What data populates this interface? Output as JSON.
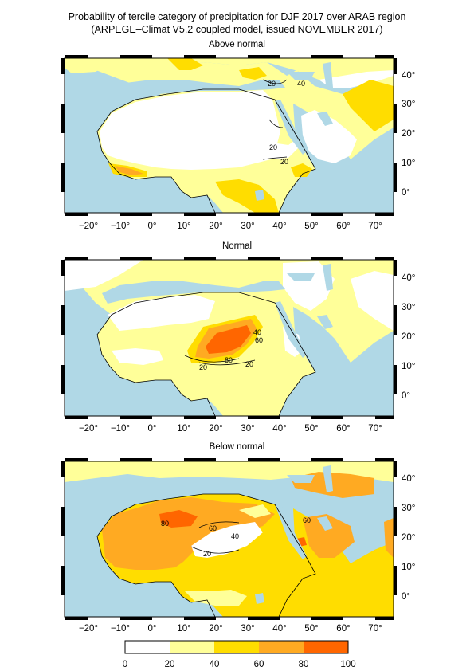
{
  "title": "Probability of tercile category of precipitation for DJF 2017 over ARAB region",
  "subtitle": "(ARPEGE–Climat V5.2 coupled model, issued NOVEMBER 2017)",
  "panels": [
    {
      "title": "Above normal",
      "contour_labels": [
        "20",
        "20",
        "20",
        "40"
      ]
    },
    {
      "title": "Normal",
      "contour_labels": [
        "20",
        "20",
        "40",
        "60",
        "80"
      ]
    },
    {
      "title": "Below normal",
      "contour_labels": [
        "20",
        "40",
        "60",
        "60",
        "80"
      ]
    }
  ],
  "x_ticks": [
    "−20°",
    "−10°",
    "0°",
    "10°",
    "20°",
    "30°",
    "40°",
    "50°",
    "60°",
    "70°"
  ],
  "y_ticks": [
    "40°",
    "30°",
    "20°",
    "10°",
    "0°"
  ],
  "colorbar": {
    "ticks": [
      "0",
      "20",
      "40",
      "60",
      "80",
      "100"
    ],
    "colors": [
      "#ffffff",
      "#ffff99",
      "#ffdd00",
      "#ffaa22",
      "#ff6600"
    ]
  },
  "colors": {
    "ocean": "#b0d8e6",
    "coast": "#000000"
  }
}
